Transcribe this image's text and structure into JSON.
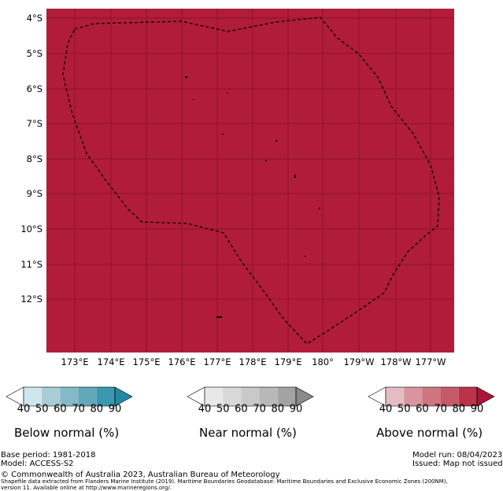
{
  "map": {
    "fill_color": "#B01C3A",
    "grid_color": "#8E1230",
    "y_labels": [
      "4°S",
      "5°S",
      "6°S",
      "7°S",
      "8°S",
      "9°S",
      "10°S",
      "11°S",
      "12°S"
    ],
    "x_labels": [
      "173°E",
      "174°E",
      "175°E",
      "176°E",
      "177°E",
      "178°E",
      "179°E",
      "180°",
      "179°W",
      "178°W",
      "177°W"
    ],
    "boundary_style": "dashed"
  },
  "legends": [
    {
      "title": "Below normal (%)",
      "ticks": [
        "40",
        "50",
        "60",
        "70",
        "80",
        "90"
      ],
      "colors": [
        "#FFFFFF",
        "#CFE6EC",
        "#A9CCD5",
        "#86B9C8",
        "#61A8B9",
        "#3A99AE",
        "#2389A2"
      ]
    },
    {
      "title": "Near normal (%)",
      "ticks": [
        "40",
        "50",
        "60",
        "70",
        "80",
        "90"
      ],
      "colors": [
        "#FFFFFF",
        "#E8E8E8",
        "#D8D8D8",
        "#C9C9C9",
        "#B8B8B8",
        "#A3A3A3",
        "#8A8A8A"
      ]
    },
    {
      "title": "Above normal (%)",
      "ticks": [
        "40",
        "50",
        "60",
        "70",
        "80",
        "90"
      ],
      "colors": [
        "#FFFFFF",
        "#E6BCC4",
        "#D8959F",
        "#CD7581",
        "#C55A68",
        "#BB3249",
        "#A81638"
      ]
    }
  ],
  "footer": {
    "base_period": "Base period: 1981-2018",
    "model": "Model: ACCESS-S2",
    "model_run": "Model run: 08/04/2023",
    "issued": "Issued: Map not issued",
    "copyright": "© Commonwealth of Australia 2023, Australian Bureau of Meteorology",
    "shapefile_line1": "Shapefile data extracted from Flanders Marine Institute (2019). Maritime Boundaries Geodatabase: Maritime Boundaries and Exclusive Economic Zones (200NM),",
    "shapefile_line2": "version 11. Available online at http://www.marineregions.org/."
  }
}
